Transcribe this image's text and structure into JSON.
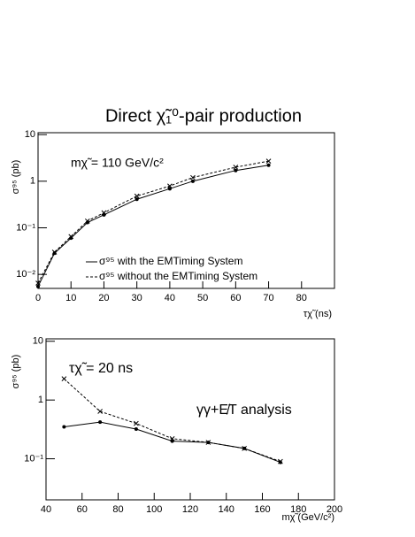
{
  "chart_data": [
    {
      "type": "line",
      "title": "Direct χ̃₁⁰-pair production",
      "y_label": "σ⁹⁵ (pb)",
      "x_label": "τχ̃ (ns)",
      "annotations": [
        "mχ̃ = 110 GeV/c²"
      ],
      "x": [
        0,
        5,
        10,
        15,
        20,
        30,
        40,
        47,
        60,
        70
      ],
      "series": [
        {
          "name": "σ⁹⁵ with the EMTiming System",
          "color": "#000000",
          "line_style": "solid",
          "marker": "circle",
          "values": [
            0.0055,
            0.0285,
            0.06,
            0.13,
            0.19,
            0.41,
            0.69,
            1.0,
            1.7,
            2.2
          ]
        },
        {
          "name": "σ⁹⁵ without the EMTiming System",
          "color": "#000000",
          "line_style": "dashed",
          "marker": "x",
          "values": [
            0.0065,
            0.03,
            0.065,
            0.14,
            0.21,
            0.48,
            0.79,
            1.2,
            2.0,
            2.7
          ]
        }
      ],
      "xlim": [
        0,
        90
      ],
      "xticks": [
        0,
        10,
        20,
        30,
        40,
        50,
        60,
        70,
        80
      ],
      "ylim": [
        0.005,
        11
      ],
      "yticks": [
        {
          "value": 0.01,
          "label": "10⁻²"
        },
        {
          "value": 0.1,
          "label": "10⁻¹"
        },
        1,
        10
      ],
      "log_y": true,
      "legend": "bottom-left"
    },
    {
      "type": "line",
      "y_label": "σ⁹⁵ (pb)",
      "x_label": "mχ̃ (GeV/c²)",
      "annotations": [
        "τχ̃ = 20 ns",
        "γγ+E̸T analysis"
      ],
      "x": [
        50,
        70,
        90,
        110,
        130,
        150,
        170
      ],
      "series": [
        {
          "color": "#000000",
          "line_style": "solid",
          "marker": "circle",
          "values": [
            0.35,
            0.42,
            0.32,
            0.2,
            0.19,
            0.15,
            0.087
          ]
        },
        {
          "color": "#000000",
          "line_style": "dashed",
          "marker": "x",
          "values": [
            2.3,
            0.64,
            0.4,
            0.22,
            0.19,
            0.15,
            0.09
          ]
        }
      ],
      "xlim": [
        40,
        200
      ],
      "xticks": [
        40,
        60,
        80,
        100,
        120,
        140,
        160,
        180,
        200
      ],
      "ylim": [
        0.02,
        11
      ],
      "yticks": [
        {
          "value": 0.1,
          "label": "10⁻¹"
        },
        1,
        10
      ],
      "log_y": true
    }
  ]
}
